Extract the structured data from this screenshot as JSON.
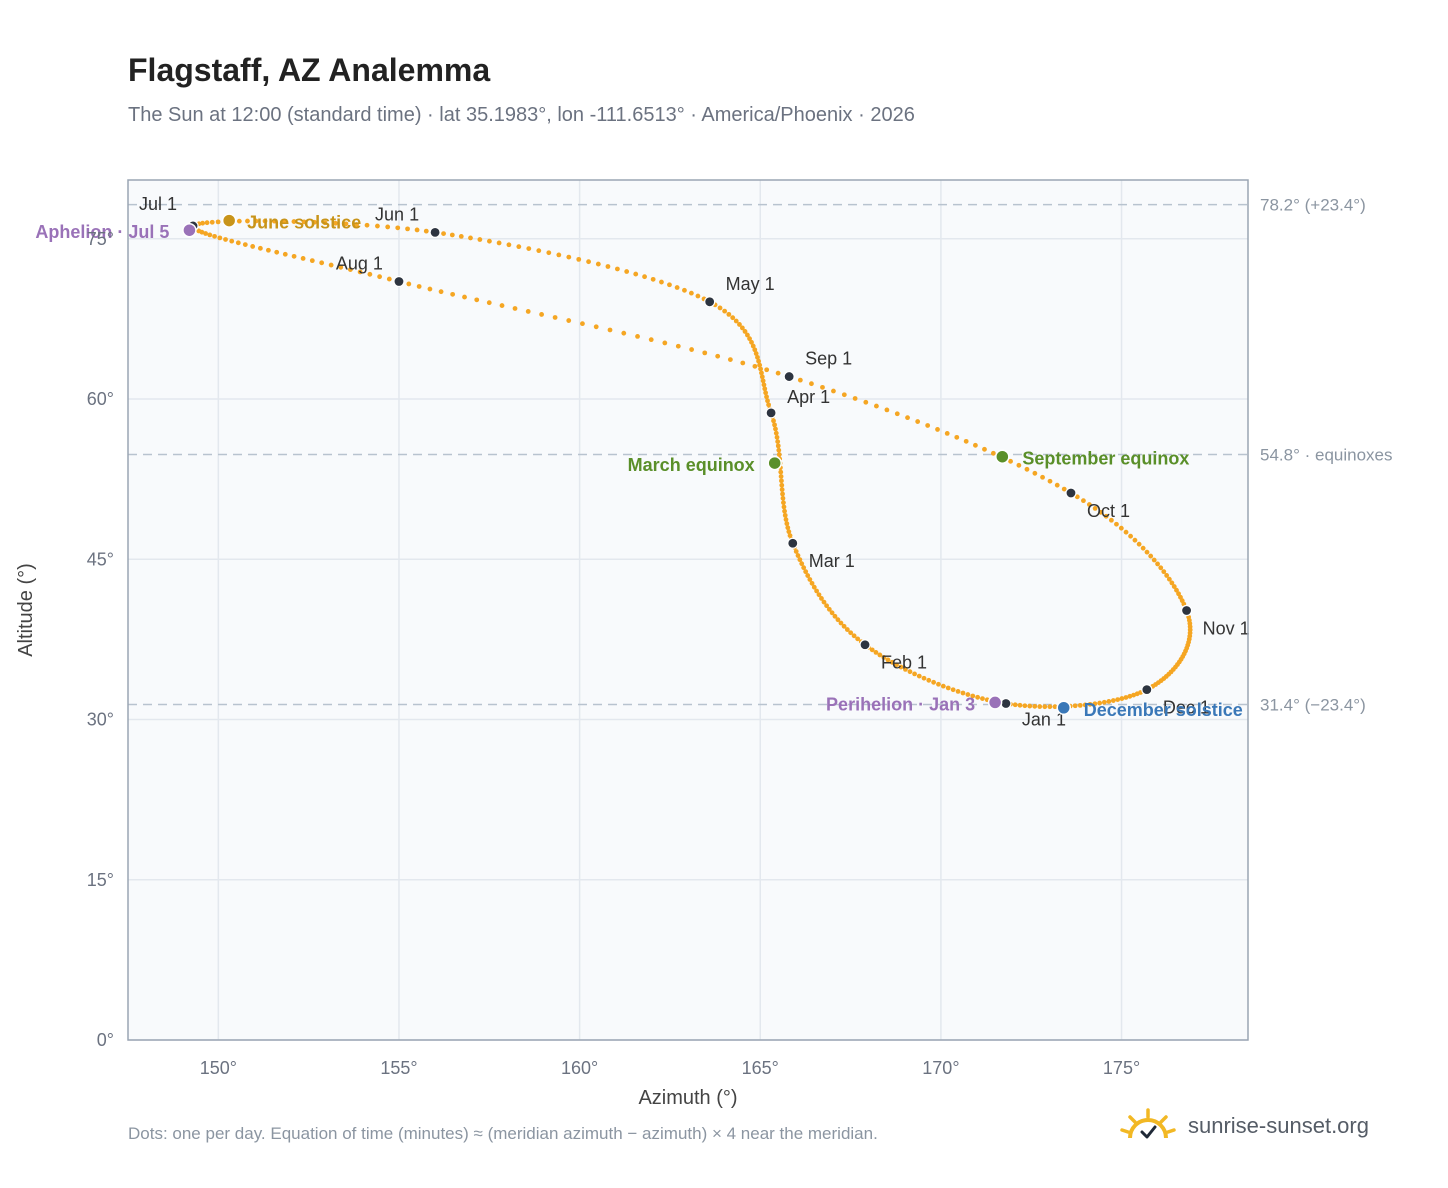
{
  "header": {
    "title": "Flagstaff, AZ Analemma",
    "subtitle": "The Sun at 12:00 (standard time) · lat 35.1983°, lon -111.6513° · America/Phoenix · 2026"
  },
  "footer": {
    "note": "Dots: one per day. Equation of time (minutes) ≈ (meridian azimuth − azimuth) × 4 near the meridian.",
    "brand": "sunrise-sunset.org",
    "brand_icon": "sun-check-icon"
  },
  "colors": {
    "curve": "#f5a623",
    "month_dot": "#2d3440",
    "june_solstice": "#c8941a",
    "december_solstice": "#3a78b8",
    "equinox": "#5a8f29",
    "apsis": "#9a72b8",
    "plot_bg": "#f8fafc",
    "grid": "#e3e8ee",
    "reference_line": "#b8c3cf"
  },
  "chart_data": {
    "type": "scatter",
    "title": "Flagstaff, AZ Analemma",
    "xlabel": "Azimuth (°)",
    "ylabel": "Altitude (°)",
    "xlim": [
      147.5,
      178.5
    ],
    "ylim": [
      0,
      80.5
    ],
    "xticks": [
      150,
      155,
      160,
      165,
      170,
      175
    ],
    "xtick_labels": [
      "150°",
      "155°",
      "160°",
      "165°",
      "170°",
      "175°"
    ],
    "yticks": [
      0,
      15,
      30,
      45,
      60,
      75
    ],
    "ytick_labels": [
      "0°",
      "15°",
      "30°",
      "45°",
      "60°",
      "75°"
    ],
    "grid": true,
    "reference_lines": [
      {
        "y": 78.2,
        "label": "78.2° (+23.4°)"
      },
      {
        "y": 54.8,
        "label": "54.8° · equinoxes"
      },
      {
        "y": 31.4,
        "label": "31.4° (−23.4°)"
      }
    ],
    "month_markers": [
      {
        "label": "Jan 1",
        "x": 171.8,
        "y": 31.5
      },
      {
        "label": "Feb 1",
        "x": 167.9,
        "y": 37.0
      },
      {
        "label": "Mar 1",
        "x": 165.9,
        "y": 46.5
      },
      {
        "label": "Apr 1",
        "x": 165.3,
        "y": 58.7
      },
      {
        "label": "May 1",
        "x": 163.6,
        "y": 69.1
      },
      {
        "label": "Jun 1",
        "x": 156.0,
        "y": 75.6
      },
      {
        "label": "Jul 1",
        "x": 149.3,
        "y": 76.2
      },
      {
        "label": "Aug 1",
        "x": 155.0,
        "y": 71.0
      },
      {
        "label": "Sep 1",
        "x": 165.8,
        "y": 62.1
      },
      {
        "label": "Oct 1",
        "x": 173.6,
        "y": 51.2
      },
      {
        "label": "Nov 1",
        "x": 176.8,
        "y": 40.2
      },
      {
        "label": "Dec 1",
        "x": 175.7,
        "y": 32.8
      }
    ],
    "events": [
      {
        "label": "June solstice",
        "x": 150.3,
        "y": 76.7,
        "color": "#c8941a"
      },
      {
        "label": "Aphelion · Jul 5",
        "x": 149.2,
        "y": 75.8,
        "color": "#9a72b8"
      },
      {
        "label": "March equinox",
        "x": 165.4,
        "y": 54.0,
        "color": "#5a8f29"
      },
      {
        "label": "September equinox",
        "x": 171.7,
        "y": 54.6,
        "color": "#5a8f29"
      },
      {
        "label": "Perihelion · Jan 3",
        "x": 171.5,
        "y": 31.6,
        "color": "#9a72b8"
      },
      {
        "label": "December solstice",
        "x": 173.4,
        "y": 31.1,
        "color": "#3a78b8"
      }
    ]
  }
}
